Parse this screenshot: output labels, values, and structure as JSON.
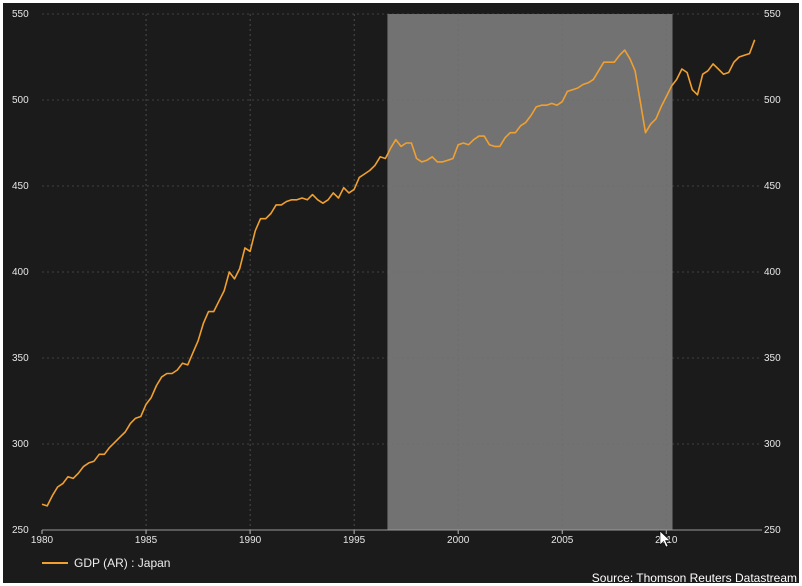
{
  "chart_data": {
    "type": "line",
    "title": "",
    "xlabel": "",
    "ylabel": "",
    "xlim": [
      1980,
      2014.6
    ],
    "ylim": [
      250,
      550
    ],
    "x_ticks": [
      "1980",
      "1985",
      "1990",
      "1995",
      "2000",
      "2005",
      "2010"
    ],
    "y_ticks_left": [
      "550",
      "500",
      "450",
      "400",
      "350",
      "300",
      "250"
    ],
    "y_ticks_right": [
      "550",
      "500",
      "450",
      "400",
      "350",
      "300",
      "250"
    ],
    "grid": true,
    "legend_position": "bottom-left",
    "shaded_region": {
      "x": [
        1996.6,
        2010.3
      ]
    },
    "series": [
      {
        "name": "GDP (AR) : Japan",
        "color": "#f0a030",
        "x": [
          1980.0,
          1980.25,
          1980.5,
          1980.75,
          1981.0,
          1981.25,
          1981.5,
          1981.75,
          1982.0,
          1982.25,
          1982.5,
          1982.75,
          1983.0,
          1983.25,
          1983.5,
          1983.75,
          1984.0,
          1984.25,
          1984.5,
          1984.75,
          1985.0,
          1985.25,
          1985.5,
          1985.75,
          1986.0,
          1986.25,
          1986.5,
          1986.75,
          1987.0,
          1987.25,
          1987.5,
          1987.75,
          1988.0,
          1988.25,
          1988.5,
          1988.75,
          1989.0,
          1989.25,
          1989.5,
          1989.75,
          1990.0,
          1990.25,
          1990.5,
          1990.75,
          1991.0,
          1991.25,
          1991.5,
          1991.75,
          1992.0,
          1992.25,
          1992.5,
          1992.75,
          1993.0,
          1993.25,
          1993.5,
          1993.75,
          1994.0,
          1994.25,
          1994.5,
          1994.75,
          1995.0,
          1995.25,
          1995.5,
          1995.75,
          1996.0,
          1996.25,
          1996.5,
          1996.75,
          1997.0,
          1997.25,
          1997.5,
          1997.75,
          1998.0,
          1998.25,
          1998.5,
          1998.75,
          1999.0,
          1999.25,
          1999.5,
          1999.75,
          2000.0,
          2000.25,
          2000.5,
          2000.75,
          2001.0,
          2001.25,
          2001.5,
          2001.75,
          2002.0,
          2002.25,
          2002.5,
          2002.75,
          2003.0,
          2003.25,
          2003.5,
          2003.75,
          2004.0,
          2004.25,
          2004.5,
          2004.75,
          2005.0,
          2005.25,
          2005.5,
          2005.75,
          2006.0,
          2006.25,
          2006.5,
          2006.75,
          2007.0,
          2007.25,
          2007.5,
          2007.75,
          2008.0,
          2008.25,
          2008.5,
          2008.75,
          2009.0,
          2009.25,
          2009.5,
          2009.75,
          2010.0,
          2010.25,
          2010.5,
          2010.75,
          2011.0,
          2011.25,
          2011.5,
          2011.75,
          2012.0,
          2012.25,
          2012.5,
          2012.75,
          2013.0,
          2013.25,
          2013.5,
          2013.75,
          2014.0,
          2014.25
        ],
        "values": [
          265,
          264,
          270,
          275,
          277,
          281,
          280,
          283,
          287,
          289,
          290,
          294,
          294,
          298,
          301,
          304,
          307,
          312,
          315,
          316,
          323,
          327,
          334,
          339,
          341,
          341,
          343,
          347,
          346,
          353,
          360,
          370,
          377,
          377,
          383,
          389,
          400,
          396,
          402,
          414,
          412,
          424,
          431,
          431,
          434,
          439,
          439,
          441,
          442,
          442,
          443,
          442,
          445,
          442,
          440,
          442,
          446,
          443,
          449,
          446,
          448,
          455,
          457,
          459,
          462,
          467,
          466,
          472,
          477,
          473,
          475,
          475,
          466,
          464,
          465,
          467,
          464,
          464,
          465,
          466,
          474,
          475,
          474,
          477,
          479,
          479,
          474,
          473,
          473,
          478,
          481,
          481,
          485,
          487,
          491,
          496,
          497,
          497,
          498,
          497,
          499,
          505,
          506,
          507,
          509,
          510,
          512,
          517,
          522,
          522,
          522,
          526,
          529,
          524,
          517,
          499,
          481,
          486,
          489,
          496,
          502,
          508,
          512,
          518,
          516,
          506,
          503,
          515,
          517,
          521,
          518,
          515,
          516,
          522,
          525,
          526,
          527,
          535
        ]
      }
    ],
    "source": "Source: Thomson Reuters Datastream"
  }
}
